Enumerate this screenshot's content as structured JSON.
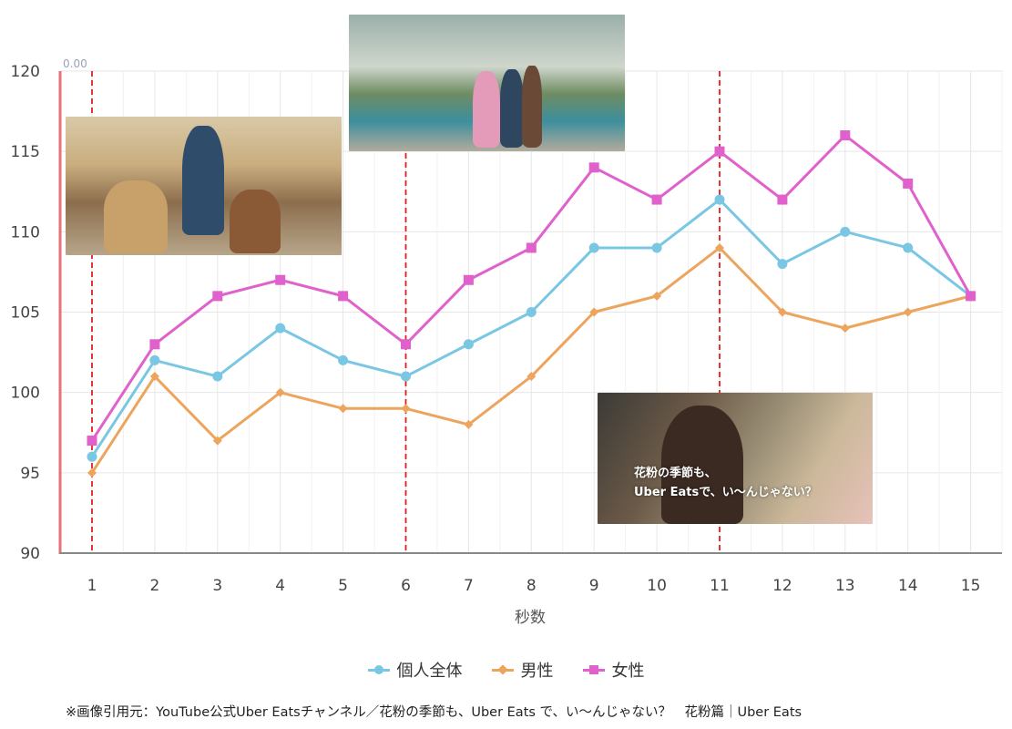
{
  "chart_data": {
    "type": "line",
    "x": [
      1,
      2,
      3,
      4,
      5,
      6,
      7,
      8,
      9,
      10,
      11,
      12,
      13,
      14,
      15
    ],
    "xlabel": "秒数",
    "ylabel": "",
    "ylim": [
      90,
      120
    ],
    "yticks": [
      90,
      95,
      100,
      105,
      110,
      115,
      120
    ],
    "series": [
      {
        "name": "個人全体",
        "color": "#79c7e3",
        "marker": "circle",
        "values": [
          96,
          102,
          101,
          104,
          102,
          101,
          103,
          105,
          109,
          109,
          112,
          108,
          110,
          109,
          106
        ]
      },
      {
        "name": "男性",
        "color": "#eda45c",
        "marker": "diamond",
        "values": [
          95,
          101,
          97,
          100,
          99,
          99,
          98,
          101,
          105,
          106,
          109,
          105,
          104,
          105,
          106
        ]
      },
      {
        "name": "女性",
        "color": "#e060cc",
        "marker": "square",
        "values": [
          97,
          103,
          106,
          107,
          106,
          103,
          107,
          109,
          114,
          112,
          115,
          112,
          116,
          113,
          106
        ]
      }
    ],
    "vertical_markers": [
      1,
      6,
      11
    ],
    "zero_label": "0.00",
    "grid": true,
    "legend_position": "bottom"
  },
  "scene_caption": "花粉の季節も、\nUber Eatsで、い～んじゃない？",
  "footnote": "※画像引用元：YouTube公式Uber Eatsチャンネル／花粉の季節も、Uber Eats で、い～んじゃない？　花粉篇｜Uber Eats"
}
